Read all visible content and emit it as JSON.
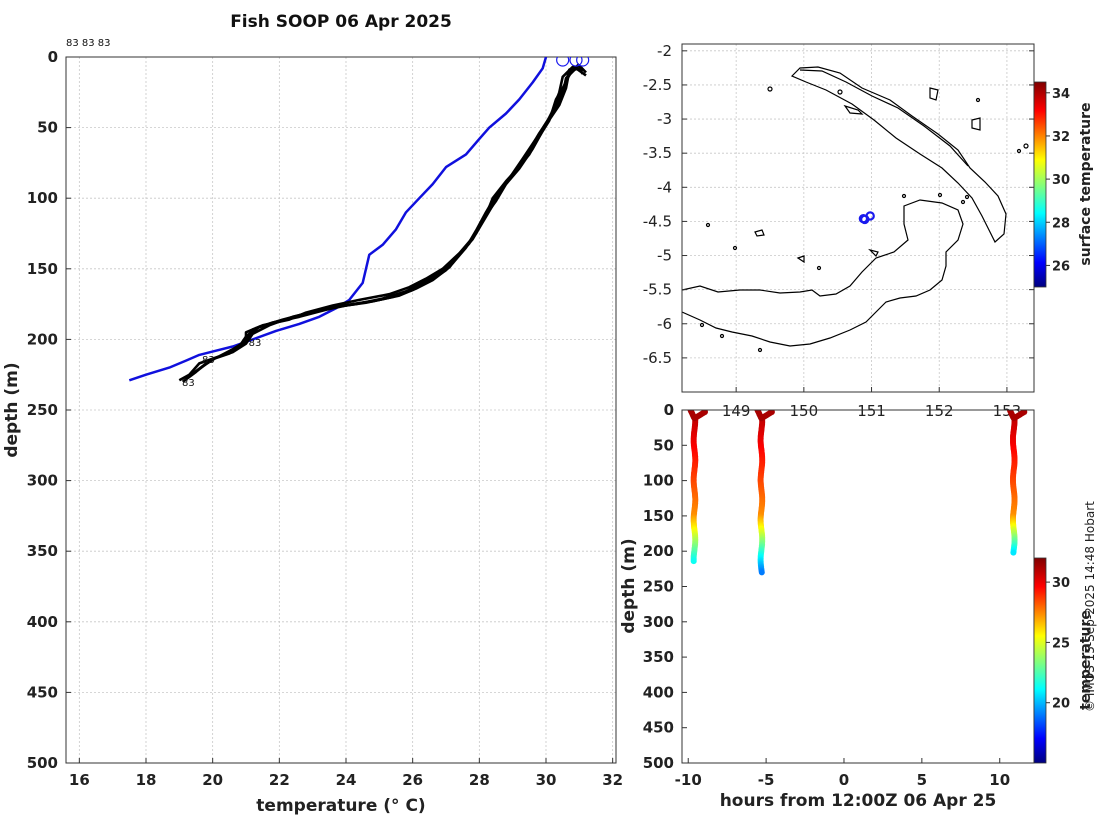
{
  "title": "Fish SOOP 06 Apr 2025",
  "credit": "© IMOS 15-Sep-2025 14:48 Hobart",
  "profile_ids_top": "83 83 83",
  "colors": {
    "profiles": "#000000",
    "climatology": "#1010dd",
    "markers": "#1a1aee"
  },
  "chart_data": [
    {
      "name": "depth-temperature-profiles",
      "type": "line",
      "xlabel": "temperature (° C)",
      "ylabel": "depth (m)",
      "xlim": [
        15.6,
        32.1
      ],
      "ylim": [
        500,
        0
      ],
      "xticks": [
        16,
        18,
        20,
        22,
        24,
        26,
        28,
        30,
        32
      ],
      "yticks": [
        0,
        50,
        100,
        150,
        200,
        250,
        300,
        350,
        400,
        450,
        500
      ],
      "grid": true,
      "series": [
        {
          "name": "climatology",
          "color": "#1010dd",
          "points": [
            [
              17.5,
              229
            ],
            [
              18.0,
              225
            ],
            [
              18.7,
              220
            ],
            [
              19.2,
              215
            ],
            [
              19.6,
              211
            ],
            [
              20.1,
              208
            ],
            [
              20.6,
              205
            ],
            [
              21.2,
              200
            ],
            [
              21.9,
              194
            ],
            [
              22.6,
              189
            ],
            [
              23.2,
              184
            ],
            [
              23.7,
              178
            ],
            [
              24.1,
              172
            ],
            [
              24.5,
              160
            ],
            [
              24.7,
              140
            ],
            [
              25.1,
              133
            ],
            [
              25.5,
              122
            ],
            [
              25.8,
              110
            ],
            [
              26.2,
              100
            ],
            [
              26.6,
              90
            ],
            [
              27.0,
              78
            ],
            [
              27.6,
              69
            ],
            [
              28.0,
              58
            ],
            [
              28.3,
              50
            ],
            [
              28.8,
              40
            ],
            [
              29.2,
              30
            ],
            [
              29.6,
              18
            ],
            [
              29.9,
              8
            ],
            [
              30.0,
              0
            ]
          ]
        },
        {
          "name": "profile-1",
          "color": "#000000",
          "points": [
            [
              19.0,
              229
            ],
            [
              19.3,
              225
            ],
            [
              19.6,
              217
            ],
            [
              20.2,
              212
            ],
            [
              20.6,
              207
            ],
            [
              21.0,
              201
            ],
            [
              21.0,
              195
            ],
            [
              21.5,
              190
            ],
            [
              22.3,
              186
            ],
            [
              22.8,
              181
            ],
            [
              23.6,
              176
            ],
            [
              24.4,
              172
            ],
            [
              25.3,
              168
            ],
            [
              25.9,
              163
            ],
            [
              26.4,
              157
            ],
            [
              26.9,
              150
            ],
            [
              27.4,
              139
            ],
            [
              27.8,
              128
            ],
            [
              28.1,
              115
            ],
            [
              28.5,
              102
            ],
            [
              28.8,
              90
            ],
            [
              29.2,
              79
            ],
            [
              29.6,
              65
            ],
            [
              30.0,
              48
            ],
            [
              30.4,
              34
            ],
            [
              30.6,
              22
            ],
            [
              30.7,
              10
            ],
            [
              31.0,
              8
            ],
            [
              31.1,
              12
            ]
          ]
        },
        {
          "name": "profile-2",
          "color": "#000000",
          "points": [
            [
              19.1,
              230
            ],
            [
              19.5,
              223
            ],
            [
              19.9,
              215
            ],
            [
              20.3,
              211
            ],
            [
              20.8,
              205
            ],
            [
              21.0,
              198
            ],
            [
              21.3,
              192
            ],
            [
              22.0,
              187
            ],
            [
              22.6,
              183
            ],
            [
              23.4,
              178
            ],
            [
              24.3,
              175
            ],
            [
              25.1,
              171
            ],
            [
              25.8,
              166
            ],
            [
              26.3,
              160
            ],
            [
              26.8,
              153
            ],
            [
              27.3,
              143
            ],
            [
              27.7,
              132
            ],
            [
              28.0,
              120
            ],
            [
              28.3,
              108
            ],
            [
              28.6,
              95
            ],
            [
              29.0,
              83
            ],
            [
              29.5,
              69
            ],
            [
              29.9,
              52
            ],
            [
              30.2,
              38
            ],
            [
              30.4,
              25
            ],
            [
              30.5,
              14
            ],
            [
              30.8,
              7
            ],
            [
              31.1,
              10
            ]
          ]
        },
        {
          "name": "profile-3",
          "color": "#000000",
          "points": [
            [
              19.3,
              226
            ],
            [
              19.7,
              219
            ],
            [
              20.1,
              213
            ],
            [
              20.6,
              209
            ],
            [
              21.0,
              203
            ],
            [
              21.2,
              196
            ],
            [
              21.7,
              190
            ],
            [
              22.4,
              184
            ],
            [
              23.1,
              180
            ],
            [
              23.9,
              176
            ],
            [
              24.8,
              173
            ],
            [
              25.6,
              169
            ],
            [
              26.1,
              164
            ],
            [
              26.6,
              158
            ],
            [
              27.1,
              149
            ],
            [
              27.5,
              137
            ],
            [
              27.9,
              125
            ],
            [
              28.2,
              112
            ],
            [
              28.4,
              100
            ],
            [
              28.8,
              88
            ],
            [
              29.3,
              75
            ],
            [
              29.7,
              60
            ],
            [
              30.1,
              45
            ],
            [
              30.3,
              30
            ],
            [
              30.6,
              18
            ],
            [
              30.7,
              9
            ],
            [
              31.0,
              6
            ],
            [
              31.2,
              11
            ]
          ]
        },
        {
          "name": "profile-4",
          "color": "#000000",
          "points": [
            [
              19.2,
              228
            ],
            [
              19.6,
              221
            ],
            [
              20.0,
              214
            ],
            [
              20.5,
              210
            ],
            [
              20.9,
              204
            ],
            [
              21.1,
              197
            ],
            [
              21.4,
              191
            ],
            [
              22.1,
              186
            ],
            [
              22.9,
              181
            ],
            [
              23.7,
              177
            ],
            [
              24.6,
              174
            ],
            [
              25.4,
              170
            ],
            [
              26.0,
              165
            ],
            [
              26.5,
              159
            ],
            [
              27.0,
              151
            ],
            [
              27.4,
              140
            ],
            [
              27.8,
              129
            ],
            [
              28.1,
              117
            ],
            [
              28.4,
              105
            ],
            [
              28.7,
              93
            ],
            [
              29.1,
              80
            ],
            [
              29.5,
              66
            ],
            [
              29.8,
              54
            ],
            [
              30.2,
              40
            ],
            [
              30.5,
              27
            ],
            [
              30.6,
              15
            ],
            [
              30.9,
              8
            ],
            [
              31.2,
              13
            ]
          ]
        },
        {
          "name": "profile-5",
          "color": "#000000",
          "points": [
            [
              21.0,
              200
            ],
            [
              21.2,
              193
            ],
            [
              21.8,
              188
            ],
            [
              22.6,
              184
            ],
            [
              23.4,
              179
            ],
            [
              24.2,
              175
            ],
            [
              25.0,
              172
            ],
            [
              25.7,
              167
            ],
            [
              26.2,
              162
            ],
            [
              26.7,
              155
            ],
            [
              27.2,
              146
            ],
            [
              27.6,
              135
            ],
            [
              27.9,
              123
            ],
            [
              28.2,
              110
            ],
            [
              28.5,
              98
            ],
            [
              28.9,
              86
            ],
            [
              29.3,
              72
            ],
            [
              29.7,
              58
            ],
            [
              30.1,
              43
            ],
            [
              30.4,
              29
            ],
            [
              30.6,
              17
            ],
            [
              30.8,
              9
            ],
            [
              31.0,
              5
            ]
          ]
        }
      ],
      "profile_labels": [
        {
          "text": "83",
          "t": 19.2,
          "d": 230
        },
        {
          "text": "83",
          "t": 19.8,
          "d": 214
        },
        {
          "text": "83",
          "t": 21.2,
          "d": 202
        }
      ],
      "surface_markers": [
        30.5,
        30.9,
        31.1
      ]
    },
    {
      "name": "location-map",
      "type": "scatter",
      "xlim": [
        148.2,
        153.4
      ],
      "ylim": [
        -7.0,
        -1.9
      ],
      "xticks": [
        149,
        150,
        151,
        152,
        153
      ],
      "xtick_labels": [
        "149",
        "150",
        "151",
        "152",
        "153"
      ],
      "yticks": [
        -2,
        -2.5,
        -3,
        -3.5,
        -4,
        -4.5,
        -5,
        -5.5,
        -6,
        -6.5
      ],
      "grid": true,
      "stations": [
        [
          150.88,
          -4.46
        ],
        [
          150.98,
          -4.42
        ],
        [
          150.9,
          -4.47
        ]
      ],
      "colorbar": {
        "label": "surface temperature",
        "range": [
          25,
          34.5
        ],
        "ticks": [
          26,
          28,
          30,
          32,
          34
        ]
      }
    },
    {
      "name": "temperature-section",
      "type": "scatter",
      "xlabel": "hours from 12:00Z 06 Apr 25",
      "ylabel": "depth (m)",
      "xlim": [
        -10.4,
        12.2
      ],
      "ylim": [
        500,
        0
      ],
      "xticks": [
        -10,
        -5,
        0,
        5,
        10
      ],
      "yticks": [
        0,
        50,
        100,
        150,
        200,
        250,
        300,
        350,
        400,
        450,
        500
      ],
      "casts": [
        {
          "hour": -9.6,
          "max_depth": 215,
          "bottom_temp": 21.5
        },
        {
          "hour": -5.3,
          "max_depth": 230,
          "bottom_temp": 19.2
        },
        {
          "hour": 10.9,
          "max_depth": 202,
          "bottom_temp": 21.0
        }
      ],
      "colorbar": {
        "label": "temperature",
        "range": [
          15,
          32
        ],
        "ticks": [
          20,
          25,
          30
        ]
      }
    }
  ]
}
